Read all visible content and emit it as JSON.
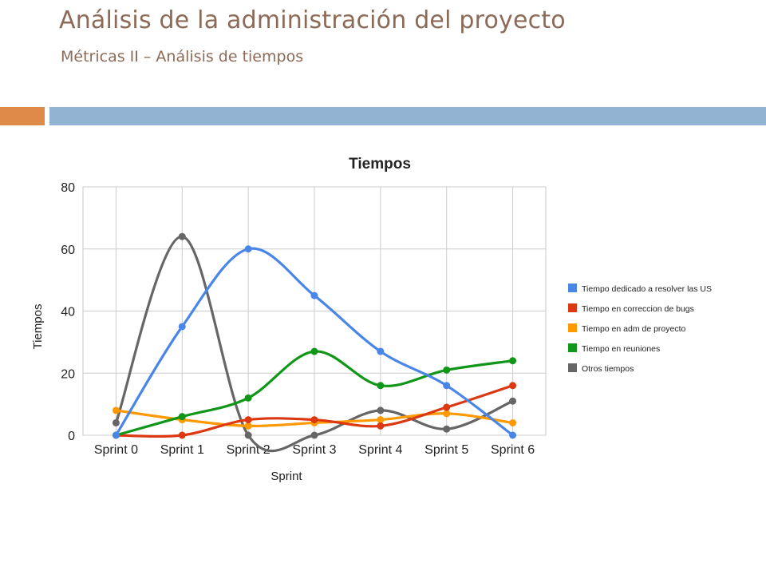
{
  "slide": {
    "title": "Análisis de la administración del proyecto",
    "subtitle": "Métricas II – Análisis de tiempos"
  },
  "chart_data": {
    "type": "line",
    "title": "Tiempos",
    "xlabel": "Sprint",
    "ylabel": "Tiempos",
    "categories": [
      "Sprint 0",
      "Sprint 1",
      "Sprint 2",
      "Sprint 3",
      "Sprint 4",
      "Sprint 5",
      "Sprint 6"
    ],
    "ylim": [
      0,
      80
    ],
    "yticks": [
      0,
      20,
      40,
      60,
      80
    ],
    "grid": true,
    "legend_position": "right",
    "smooth": true,
    "series": [
      {
        "name": "Tiempo dedicado a resolver las US",
        "color": "#4a86e8",
        "values": [
          0,
          35,
          60,
          45,
          27,
          16,
          0
        ]
      },
      {
        "name": "Tiempo en correccion de bugs",
        "color": "#dc3912",
        "values": [
          0,
          0,
          5,
          5,
          3,
          9,
          16
        ]
      },
      {
        "name": "Tiempo en adm de proyecto",
        "color": "#ff9900",
        "values": [
          8,
          5,
          3,
          4,
          5,
          7,
          4
        ]
      },
      {
        "name": "Tiempo en reuniones",
        "color": "#109618",
        "values": [
          0,
          6,
          12,
          27,
          16,
          21,
          24
        ]
      },
      {
        "name": "Otros tiempos",
        "color": "#666666",
        "values": [
          4,
          64,
          0,
          0,
          8,
          2,
          11
        ]
      }
    ]
  }
}
